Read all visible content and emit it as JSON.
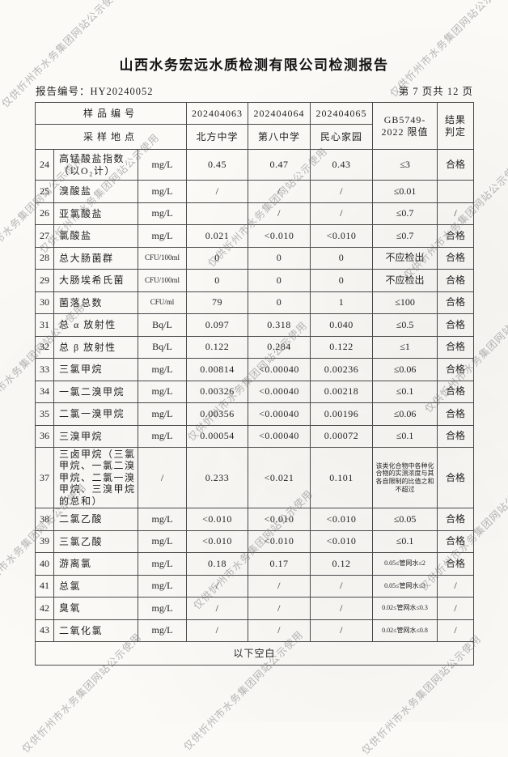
{
  "page": {
    "title": "山西水务宏远水质检测有限公司检测报告",
    "report_no": "报告编号：HY20240052",
    "page_info": "第 7 页共 12 页",
    "watermark_text": "仅供忻州市水务集团网站公示使用",
    "footer_note": "以下空白"
  },
  "table": {
    "header": {
      "sample_id_label": "样品编号",
      "location_label": "采样地点",
      "sample_ids": [
        "202404063",
        "202404064",
        "202404065"
      ],
      "locations": [
        "北方中学",
        "第八中学",
        "民心家园"
      ],
      "standard_line1": "GB5749-",
      "standard_line2": "2022 限值",
      "result_line1": "结果",
      "result_line2": "判定"
    },
    "rows": [
      {
        "no": "24",
        "item": "高锰酸盐指数（以O₂计）",
        "unit": "mg/L",
        "v1": "0.45",
        "v2": "0.47",
        "v3": "0.43",
        "limit": "≤3",
        "result": "合格"
      },
      {
        "no": "25",
        "item": "溴酸盐",
        "unit": "mg/L",
        "v1": "/",
        "v2": "/",
        "v3": "/",
        "limit": "≤0.01",
        "result": ""
      },
      {
        "no": "26",
        "item": "亚氯酸盐",
        "unit": "mg/L",
        "v1": "",
        "v2": "/",
        "v3": "/",
        "limit": "≤0.7",
        "result": "/"
      },
      {
        "no": "27",
        "item": "氯酸盐",
        "unit": "mg/L",
        "v1": "0.021",
        "v2": "<0.010",
        "v3": "<0.010",
        "limit": "≤0.7",
        "result": "合格"
      },
      {
        "no": "28",
        "item": "总大肠菌群",
        "unit": "CFU/100ml",
        "v1": "0",
        "v2": "0",
        "v3": "0",
        "limit": "不应检出",
        "result": "合格"
      },
      {
        "no": "29",
        "item": "大肠埃希氏菌",
        "unit": "CFU/100ml",
        "v1": "0",
        "v2": "0",
        "v3": "0",
        "limit": "不应检出",
        "result": "合格"
      },
      {
        "no": "30",
        "item": "菌落总数",
        "unit": "CFU/ml",
        "v1": "79",
        "v2": "0",
        "v3": "1",
        "limit": "≤100",
        "result": "合格"
      },
      {
        "no": "31",
        "item": "总 α 放射性",
        "unit": "Bq/L",
        "v1": "0.097",
        "v2": "0.318",
        "v3": "0.040",
        "limit": "≤0.5",
        "result": "合格"
      },
      {
        "no": "32",
        "item": "总 β 放射性",
        "unit": "Bq/L",
        "v1": "0.122",
        "v2": "0.284",
        "v3": "0.122",
        "limit": "≤1",
        "result": "合格"
      },
      {
        "no": "33",
        "item": "三氯甲烷",
        "unit": "mg/L",
        "v1": "0.00814",
        "v2": "<0.00040",
        "v3": "0.00236",
        "limit": "≤0.06",
        "result": "合格"
      },
      {
        "no": "34",
        "item": "一氯二溴甲烷",
        "unit": "mg/L",
        "v1": "0.00326",
        "v2": "<0.00040",
        "v3": "0.00218",
        "limit": "≤0.1",
        "result": "合格"
      },
      {
        "no": "35",
        "item": "二氯一溴甲烷",
        "unit": "mg/L",
        "v1": "0.00356",
        "v2": "<0.00040",
        "v3": "0.00196",
        "limit": "≤0.06",
        "result": "合格"
      },
      {
        "no": "36",
        "item": "三溴甲烷",
        "unit": "mg/L",
        "v1": "0.00054",
        "v2": "<0.00040",
        "v3": "0.00072",
        "limit": "≤0.1",
        "result": "合格"
      },
      {
        "no": "37",
        "item": "三卤甲烷（三氯甲烷、一氯二溴甲烷、二氯一溴甲烷、三溴甲烷的总和）",
        "unit": "/",
        "v1": "0.233",
        "v2": "<0.021",
        "v3": "0.101",
        "limit": "该类化合物中各种化合物的实测浓度与其各自限制的比值之和不超过",
        "result": "合格"
      },
      {
        "no": "38",
        "item": "二氯乙酸",
        "unit": "mg/L",
        "v1": "<0.010",
        "v2": "<0.010",
        "v3": "<0.010",
        "limit": "≤0.05",
        "result": "合格"
      },
      {
        "no": "39",
        "item": "三氯乙酸",
        "unit": "mg/L",
        "v1": "<0.010",
        "v2": "<0.010",
        "v3": "<0.010",
        "limit": "≤0.1",
        "result": "合格"
      },
      {
        "no": "40",
        "item": "游离氯",
        "unit": "mg/L",
        "v1": "0.18",
        "v2": "0.17",
        "v3": "0.12",
        "limit": "0.05≤管网水≤2",
        "result": "合格"
      },
      {
        "no": "41",
        "item": "总氯",
        "unit": "mg/L",
        "v1": "/",
        "v2": "/",
        "v3": "/",
        "limit": "0.05≤管网水≤3",
        "result": "/"
      },
      {
        "no": "42",
        "item": "臭氧",
        "unit": "mg/L",
        "v1": "/",
        "v2": "/",
        "v3": "/",
        "limit": "0.02≤管网水≤0.3",
        "result": "/"
      },
      {
        "no": "43",
        "item": "二氧化氯",
        "unit": "mg/L",
        "v1": "/",
        "v2": "/",
        "v3": "/",
        "limit": "0.02≤管网水≤0.8",
        "result": "/"
      }
    ]
  }
}
